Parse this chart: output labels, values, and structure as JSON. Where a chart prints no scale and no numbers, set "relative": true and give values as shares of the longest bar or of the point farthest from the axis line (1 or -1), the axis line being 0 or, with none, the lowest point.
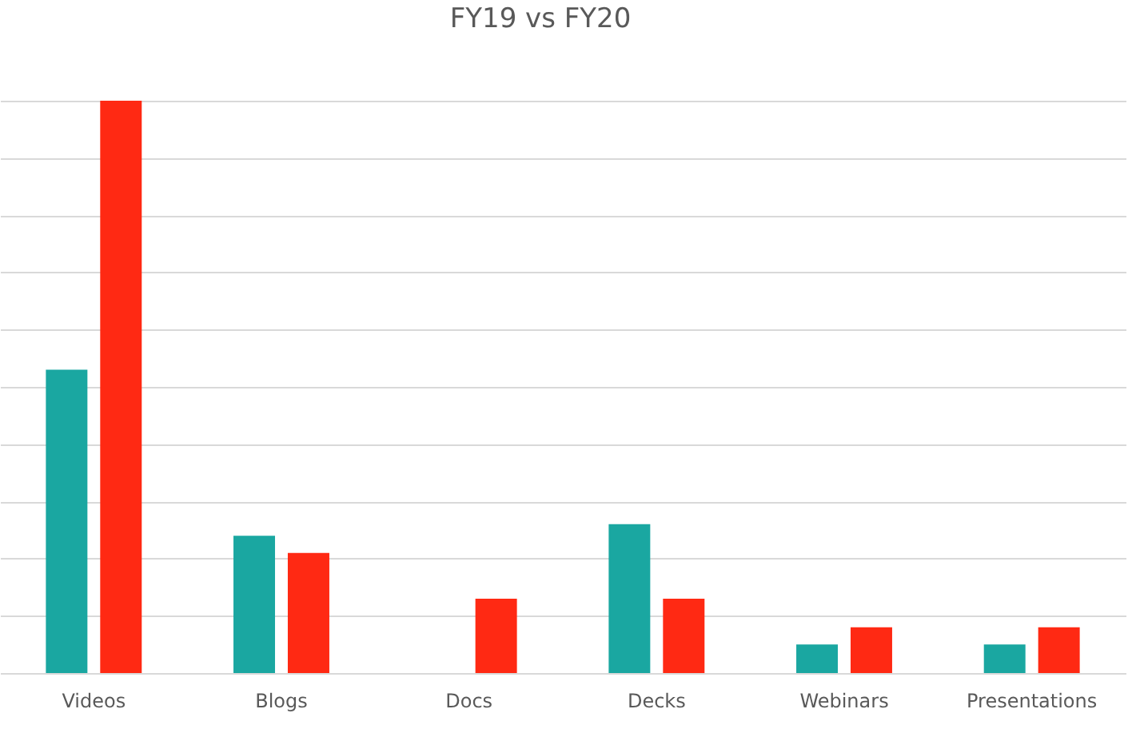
{
  "chart_data": {
    "type": "bar",
    "title": "FY19 vs FY20",
    "categories": [
      "Videos",
      "Blogs",
      "Docs",
      "Decks",
      "Webinars",
      "Presentations"
    ],
    "relative": true,
    "grid": "y",
    "series": [
      {
        "color": "#1aa7a1",
        "values": [
          0.53,
          0.24,
          0,
          0.26,
          0.05,
          0.05
        ]
      },
      {
        "color": "#ff2913",
        "values": [
          1,
          0.21,
          0.13,
          0.13,
          0.08,
          0.08
        ]
      }
    ]
  }
}
